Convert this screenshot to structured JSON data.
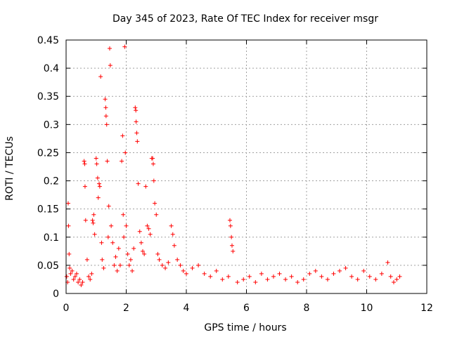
{
  "chart_data": {
    "type": "scatter",
    "title": "Day 345 of 2023, Rate Of TEC Index for receiver msgr",
    "xlabel": "GPS time / hours",
    "ylabel": "ROTI / TECUs",
    "xlim": [
      0,
      12
    ],
    "ylim": [
      0,
      0.45
    ],
    "xticks": [
      0,
      2,
      4,
      6,
      8,
      10,
      12
    ],
    "yticks": [
      0,
      0.05,
      0.1,
      0.15,
      0.2,
      0.25,
      0.3,
      0.35,
      0.4,
      0.45
    ],
    "grid": true,
    "marker": "+",
    "color": "#ff0000",
    "series": [
      {
        "name": "ROTI",
        "points": [
          [
            0.02,
            0.03
          ],
          [
            0.05,
            0.02
          ],
          [
            0.07,
            0.16
          ],
          [
            0.08,
            0.12
          ],
          [
            0.1,
            0.07
          ],
          [
            0.12,
            0.045
          ],
          [
            0.15,
            0.035
          ],
          [
            0.2,
            0.04
          ],
          [
            0.25,
            0.025
          ],
          [
            0.3,
            0.03
          ],
          [
            0.35,
            0.035
          ],
          [
            0.4,
            0.02
          ],
          [
            0.45,
            0.025
          ],
          [
            0.5,
            0.015
          ],
          [
            0.55,
            0.02
          ],
          [
            0.6,
            0.235
          ],
          [
            0.62,
            0.23
          ],
          [
            0.63,
            0.19
          ],
          [
            0.65,
            0.13
          ],
          [
            0.7,
            0.06
          ],
          [
            0.75,
            0.03
          ],
          [
            0.8,
            0.025
          ],
          [
            0.85,
            0.035
          ],
          [
            0.88,
            0.13
          ],
          [
            0.9,
            0.125
          ],
          [
            0.92,
            0.14
          ],
          [
            0.95,
            0.105
          ],
          [
            1.0,
            0.24
          ],
          [
            1.02,
            0.23
          ],
          [
            1.05,
            0.205
          ],
          [
            1.07,
            0.17
          ],
          [
            1.1,
            0.195
          ],
          [
            1.12,
            0.19
          ],
          [
            1.15,
            0.385
          ],
          [
            1.18,
            0.09
          ],
          [
            1.2,
            0.06
          ],
          [
            1.25,
            0.045
          ],
          [
            1.3,
            0.345
          ],
          [
            1.32,
            0.33
          ],
          [
            1.33,
            0.315
          ],
          [
            1.35,
            0.3
          ],
          [
            1.37,
            0.235
          ],
          [
            1.4,
            0.1
          ],
          [
            1.42,
            0.155
          ],
          [
            1.45,
            0.435
          ],
          [
            1.47,
            0.405
          ],
          [
            1.5,
            0.12
          ],
          [
            1.55,
            0.09
          ],
          [
            1.6,
            0.05
          ],
          [
            1.65,
            0.065
          ],
          [
            1.7,
            0.04
          ],
          [
            1.75,
            0.08
          ],
          [
            1.8,
            0.05
          ],
          [
            1.85,
            0.235
          ],
          [
            1.88,
            0.28
          ],
          [
            1.9,
            0.14
          ],
          [
            1.92,
            0.1
          ],
          [
            1.95,
            0.438
          ],
          [
            1.97,
            0.25
          ],
          [
            2.0,
            0.12
          ],
          [
            2.05,
            0.07
          ],
          [
            2.1,
            0.05
          ],
          [
            2.15,
            0.06
          ],
          [
            2.2,
            0.04
          ],
          [
            2.25,
            0.08
          ],
          [
            2.3,
            0.33
          ],
          [
            2.32,
            0.325
          ],
          [
            2.33,
            0.305
          ],
          [
            2.35,
            0.285
          ],
          [
            2.37,
            0.27
          ],
          [
            2.4,
            0.195
          ],
          [
            2.45,
            0.11
          ],
          [
            2.5,
            0.09
          ],
          [
            2.55,
            0.075
          ],
          [
            2.6,
            0.07
          ],
          [
            2.65,
            0.19
          ],
          [
            2.7,
            0.12
          ],
          [
            2.75,
            0.115
          ],
          [
            2.8,
            0.105
          ],
          [
            2.85,
            0.24
          ],
          [
            2.88,
            0.24
          ],
          [
            2.9,
            0.23
          ],
          [
            2.92,
            0.2
          ],
          [
            2.95,
            0.16
          ],
          [
            3.0,
            0.14
          ],
          [
            3.05,
            0.07
          ],
          [
            3.1,
            0.06
          ],
          [
            3.2,
            0.05
          ],
          [
            3.3,
            0.045
          ],
          [
            3.4,
            0.055
          ],
          [
            3.5,
            0.12
          ],
          [
            3.55,
            0.105
          ],
          [
            3.6,
            0.085
          ],
          [
            3.7,
            0.06
          ],
          [
            3.8,
            0.05
          ],
          [
            3.9,
            0.04
          ],
          [
            4.0,
            0.035
          ],
          [
            4.2,
            0.045
          ],
          [
            4.4,
            0.05
          ],
          [
            4.6,
            0.035
          ],
          [
            4.8,
            0.03
          ],
          [
            5.0,
            0.04
          ],
          [
            5.2,
            0.025
          ],
          [
            5.4,
            0.03
          ],
          [
            5.45,
            0.13
          ],
          [
            5.47,
            0.12
          ],
          [
            5.5,
            0.1
          ],
          [
            5.52,
            0.085
          ],
          [
            5.55,
            0.075
          ],
          [
            5.7,
            0.02
          ],
          [
            5.9,
            0.025
          ],
          [
            6.1,
            0.03
          ],
          [
            6.3,
            0.02
          ],
          [
            6.5,
            0.035
          ],
          [
            6.7,
            0.025
          ],
          [
            6.9,
            0.03
          ],
          [
            7.1,
            0.035
          ],
          [
            7.3,
            0.025
          ],
          [
            7.5,
            0.03
          ],
          [
            7.7,
            0.02
          ],
          [
            7.9,
            0.025
          ],
          [
            8.1,
            0.035
          ],
          [
            8.3,
            0.04
          ],
          [
            8.5,
            0.03
          ],
          [
            8.7,
            0.025
          ],
          [
            8.9,
            0.035
          ],
          [
            9.1,
            0.04
          ],
          [
            9.3,
            0.045
          ],
          [
            9.5,
            0.03
          ],
          [
            9.7,
            0.025
          ],
          [
            9.9,
            0.04
          ],
          [
            10.1,
            0.03
          ],
          [
            10.3,
            0.025
          ],
          [
            10.5,
            0.035
          ],
          [
            10.7,
            0.055
          ],
          [
            10.8,
            0.03
          ],
          [
            10.9,
            0.02
          ],
          [
            11.0,
            0.025
          ],
          [
            11.1,
            0.03
          ]
        ]
      }
    ]
  }
}
